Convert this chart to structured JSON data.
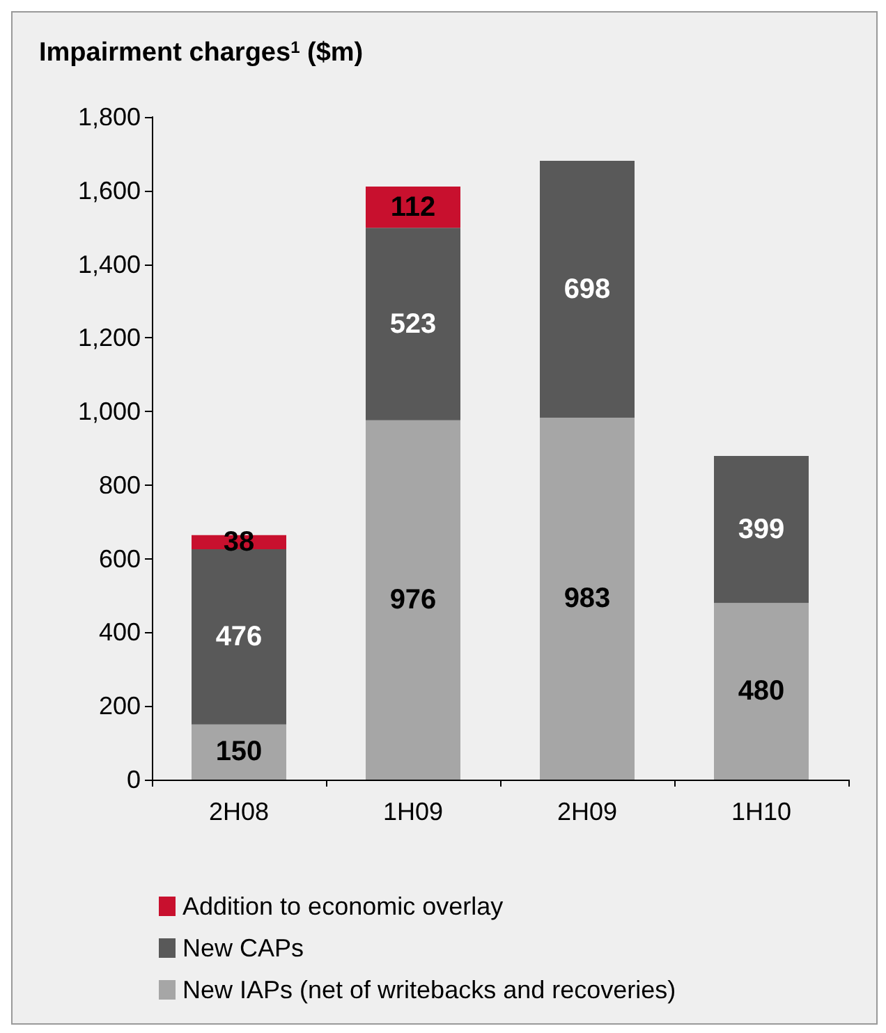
{
  "chart_data": {
    "type": "bar",
    "stacked": true,
    "title": "Impairment charges$^{1}$ ($m)",
    "categories": [
      "2H08",
      "1H09",
      "2H09",
      "1H10"
    ],
    "series": [
      {
        "name": "New IAPs (net of writebacks and recoveries)",
        "color": "#a6a6a6",
        "values": [
          150,
          976,
          983,
          480
        ]
      },
      {
        "name": "New CAPs",
        "color": "#595959",
        "values": [
          476,
          523,
          698,
          399
        ]
      },
      {
        "name": "Addition to economic overlay",
        "color": "#c8102e",
        "values": [
          38,
          112,
          null,
          null
        ]
      }
    ],
    "ylim": [
      0,
      1800
    ],
    "yticks": [
      0,
      200,
      400,
      600,
      800,
      {
        "value": 1000,
        "label": "1,000"
      },
      {
        "value": 1200,
        "label": "1,200"
      },
      {
        "value": 1400,
        "label": "1,400"
      },
      {
        "value": 1600,
        "label": "1,600"
      },
      {
        "value": 1800,
        "label": "1,800"
      }
    ],
    "data_labels": true,
    "grid": false,
    "legend": "bottom"
  }
}
